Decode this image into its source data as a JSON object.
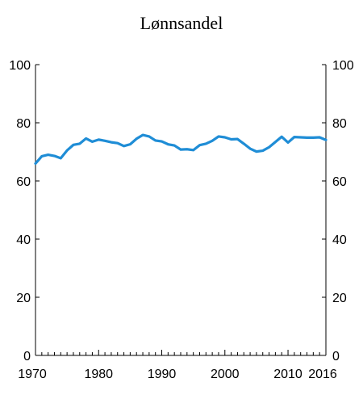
{
  "chart_data": {
    "type": "line",
    "title": "Lønnsandel",
    "xlabel": "",
    "ylabel": "",
    "xlim": [
      1970,
      2016
    ],
    "ylim": [
      0,
      100
    ],
    "x_tick_labels": [
      "1970",
      "1980",
      "1990",
      "2000",
      "2010",
      "2016"
    ],
    "x_ticks": [
      1970,
      1980,
      1990,
      2000,
      2010,
      2016
    ],
    "y_tick_labels": [
      "0",
      "20",
      "40",
      "60",
      "80",
      "100"
    ],
    "y_ticks": [
      0,
      20,
      40,
      60,
      80,
      100
    ],
    "grid": false,
    "legend": "none",
    "colors": {
      "line": "#1f8dd6",
      "axis": "#000000"
    },
    "series": [
      {
        "x": [
          1970,
          1971,
          1972,
          1973,
          1974,
          1975,
          1976,
          1977,
          1978,
          1979,
          1980,
          1981,
          1982,
          1983,
          1984,
          1985,
          1986,
          1987,
          1988,
          1989,
          1990,
          1991,
          1992,
          1993,
          1994,
          1995,
          1996,
          1997,
          1998,
          1999,
          2000,
          2001,
          2002,
          2003,
          2004,
          2005,
          2006,
          2007,
          2008,
          2009,
          2010,
          2011,
          2012,
          2013,
          2014,
          2015,
          2016
        ],
        "values": [
          66.0,
          68.5,
          69.0,
          68.6,
          67.8,
          70.5,
          72.4,
          72.8,
          74.6,
          73.5,
          74.2,
          73.8,
          73.3,
          73.0,
          72.0,
          72.6,
          74.5,
          75.8,
          75.3,
          73.9,
          73.6,
          72.6,
          72.2,
          70.8,
          70.9,
          70.6,
          72.3,
          72.8,
          73.8,
          75.3,
          75.0,
          74.3,
          74.4,
          72.8,
          71.1,
          70.1,
          70.4,
          71.6,
          73.4,
          75.2,
          73.2,
          75.1,
          75.0,
          74.9,
          74.9,
          75.0,
          74.1
        ]
      }
    ]
  }
}
